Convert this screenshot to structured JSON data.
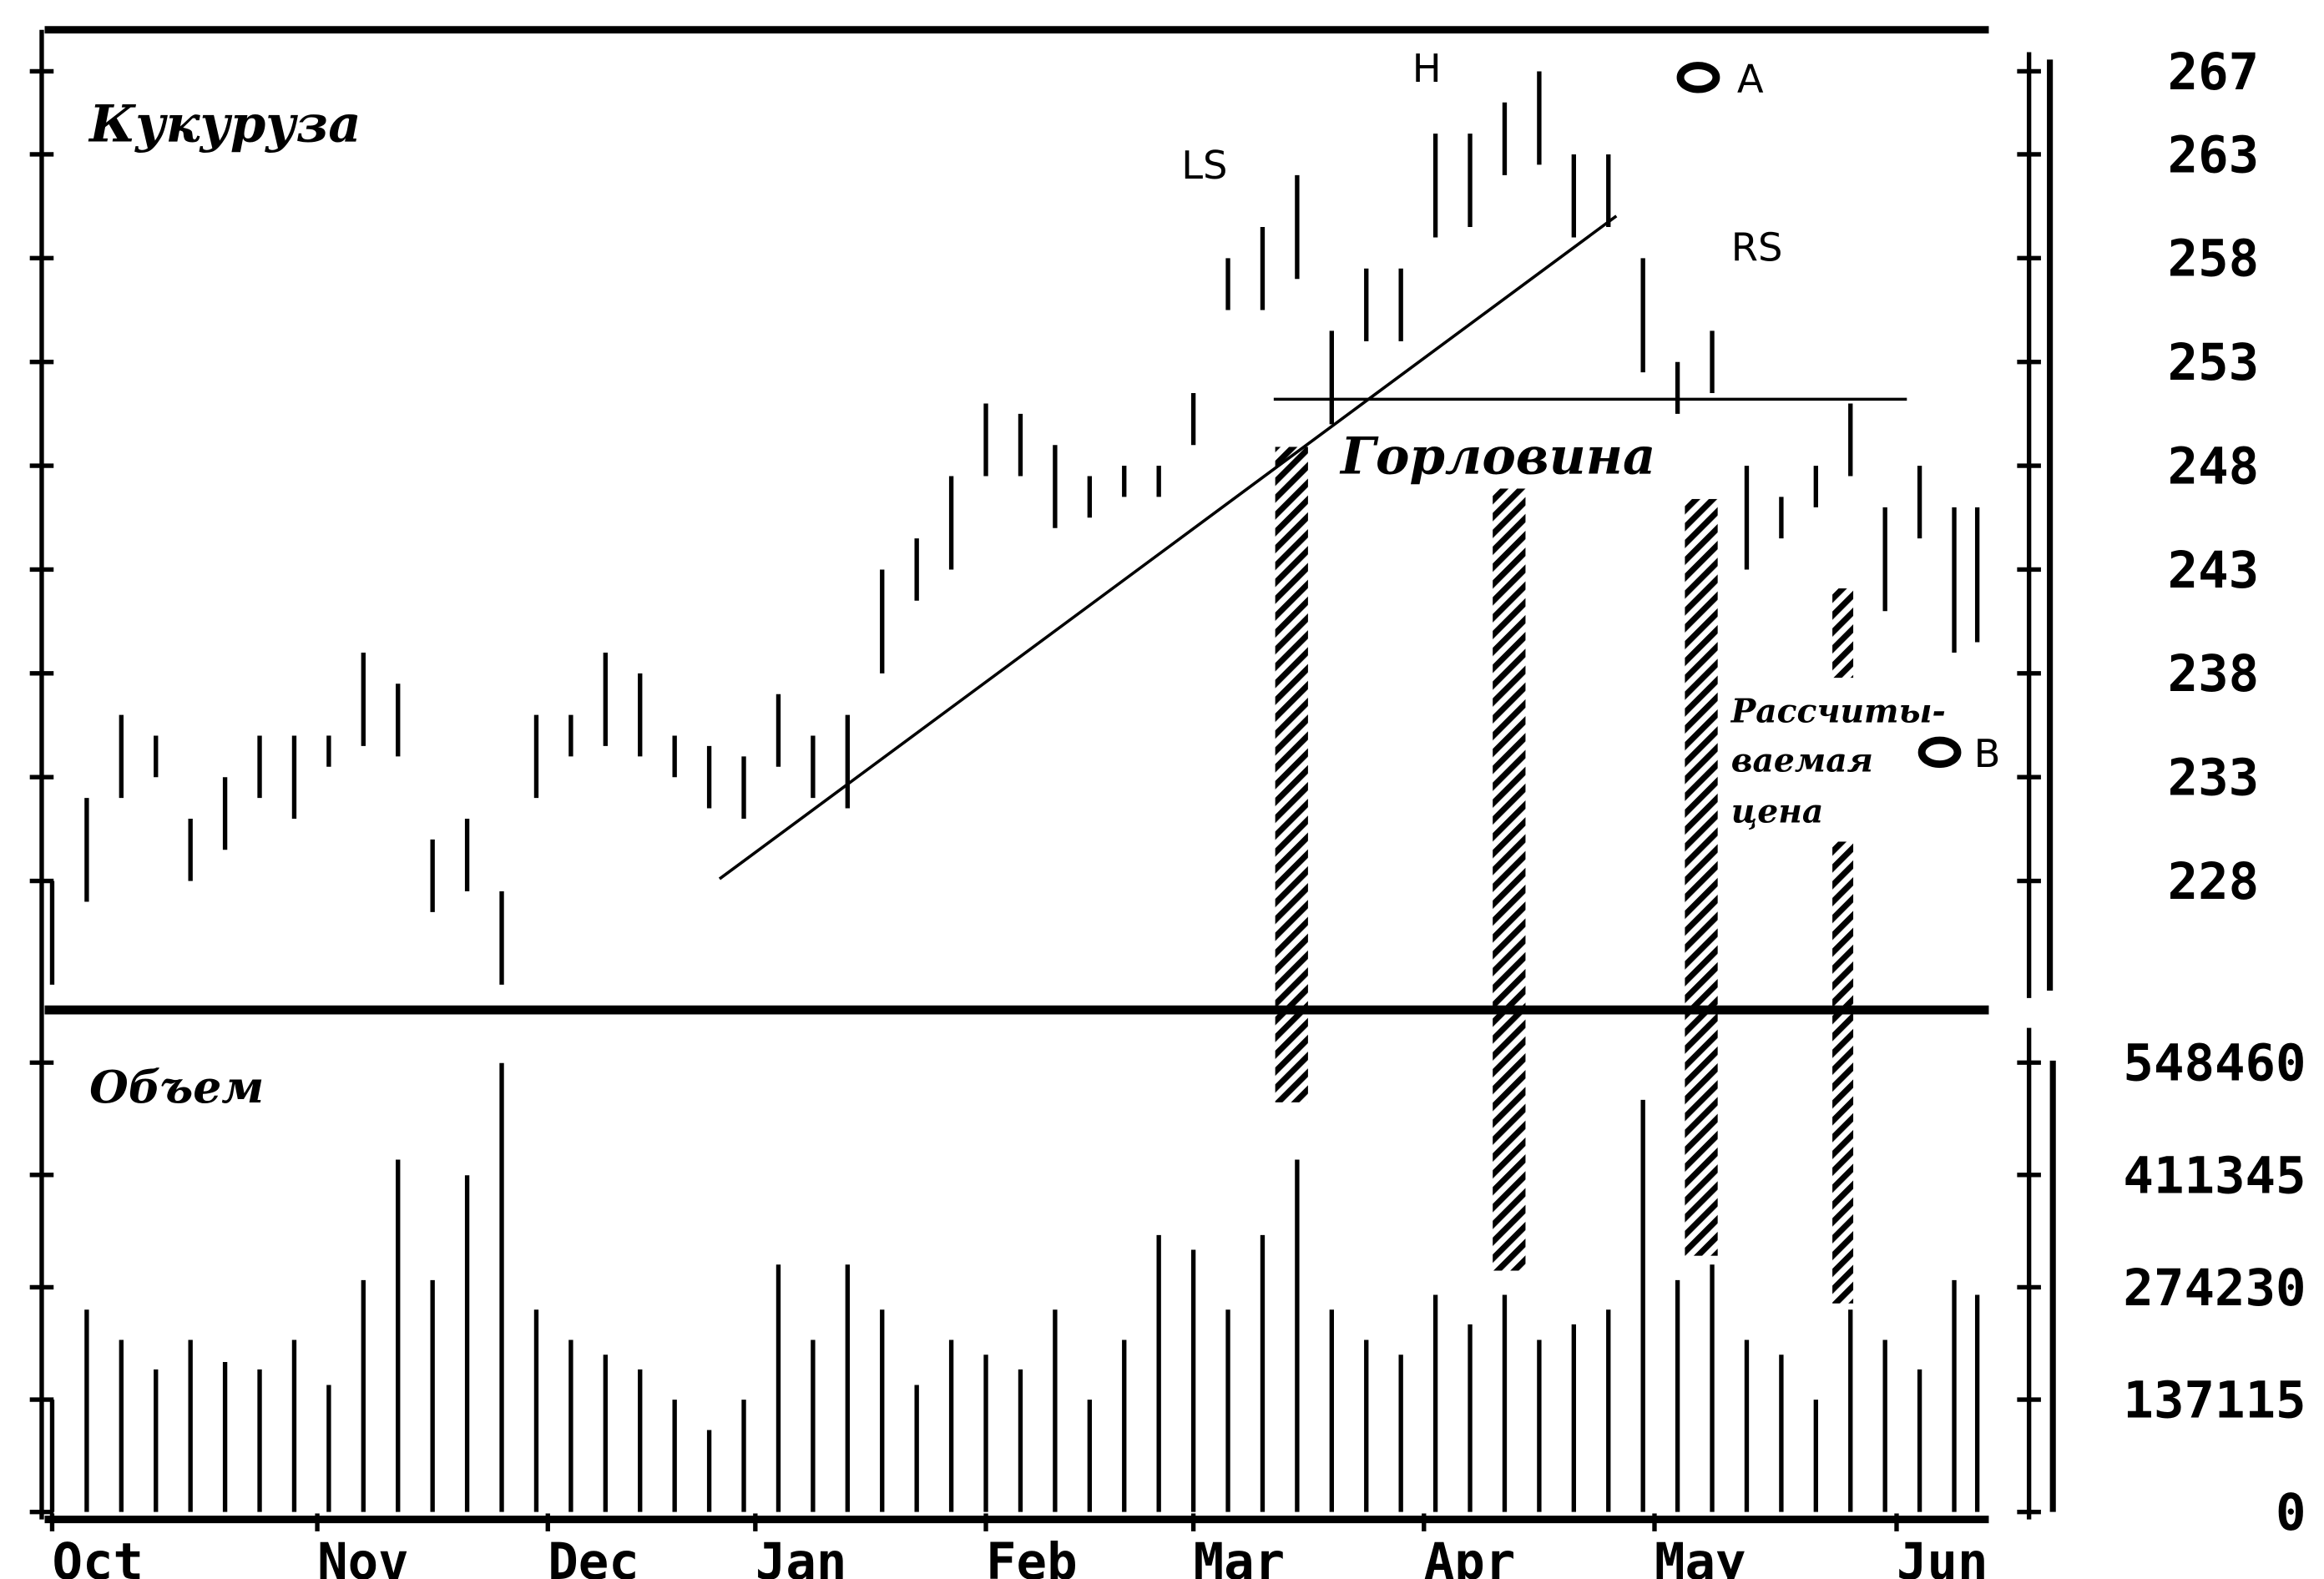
{
  "chart_data": {
    "type": "hl_bar",
    "title": "Кукуруза",
    "volume_title": "Объем",
    "x": [
      0,
      3,
      6,
      9,
      12,
      15,
      18,
      21,
      24,
      27,
      30,
      33,
      36,
      39,
      42,
      45,
      48,
      51,
      54,
      57,
      60,
      63,
      66,
      69,
      72,
      75,
      78,
      81,
      84,
      87,
      90,
      93,
      96,
      99,
      102,
      105,
      108,
      111,
      114,
      117,
      120,
      123,
      126,
      129,
      132,
      135,
      138,
      141,
      144,
      147,
      150,
      153,
      156,
      159,
      162,
      165,
      167
    ],
    "high": [
      228,
      232,
      236,
      235,
      231,
      233,
      235,
      235,
      235,
      239,
      237.5,
      230,
      231,
      227.5,
      236,
      236,
      239,
      238,
      235,
      234.5,
      234,
      237,
      235,
      236,
      243,
      244.5,
      247.5,
      251,
      250.5,
      249,
      247.5,
      248,
      248,
      251.5,
      258,
      259.5,
      262,
      254.5,
      257.5,
      257.5,
      264,
      264,
      265.5,
      267,
      263,
      263,
      258,
      253,
      254.5,
      248,
      246.5,
      248,
      251,
      246,
      248,
      246,
      246
    ],
    "low": [
      223,
      227,
      232,
      233,
      228,
      229.5,
      232,
      231,
      233.5,
      234.5,
      234,
      226.5,
      227.5,
      223,
      232,
      234,
      234.5,
      234,
      233,
      231.5,
      231,
      233.5,
      232,
      231.5,
      238,
      241.5,
      243,
      247.5,
      247.5,
      245,
      245.5,
      246.5,
      246.5,
      249,
      255.5,
      255.5,
      257,
      250,
      254,
      254,
      259,
      259.5,
      262,
      262.5,
      259,
      259.5,
      252.5,
      250.5,
      251.5,
      243,
      244.5,
      246,
      247.5,
      241,
      244.5,
      239,
      239.5
    ],
    "volume": [
      137000,
      247000,
      210000,
      174000,
      210000,
      183000,
      174000,
      210000,
      155000,
      283000,
      430000,
      283000,
      411000,
      548000,
      247000,
      210000,
      192000,
      174000,
      137000,
      100000,
      137000,
      302000,
      210000,
      302000,
      247000,
      155000,
      210000,
      192000,
      174000,
      247000,
      137000,
      210000,
      338000,
      320000,
      247000,
      338000,
      430000,
      247000,
      210000,
      192000,
      265000,
      229000,
      265000,
      210000,
      229000,
      247000,
      503000,
      283000,
      302000,
      210000,
      192000,
      137000,
      247000,
      210000,
      174000,
      283000,
      265000
    ],
    "color": "#000000",
    "xlim": [
      0,
      168
    ],
    "xticks": [
      {
        "value": 0,
        "label": "Oct"
      },
      {
        "value": 23,
        "label": "Nov"
      },
      {
        "value": 43,
        "label": "Dec"
      },
      {
        "value": 61,
        "label": "Jan"
      },
      {
        "value": 81,
        "label": "Feb"
      },
      {
        "value": 99,
        "label": "Mar"
      },
      {
        "value": 119,
        "label": "Apr"
      },
      {
        "value": 139,
        "label": "May"
      },
      {
        "value": 160,
        "label": "Jun"
      }
    ],
    "ylim": [
      222,
      269
    ],
    "yticks": [
      267,
      263,
      258,
      253,
      248,
      243,
      238,
      233,
      228
    ],
    "volume_lim": [
      0,
      600000
    ],
    "volume_ticks": [
      548460,
      411345,
      274230,
      137115,
      0
    ],
    "annotations": [
      "LS",
      "H",
      "RS",
      "A",
      "B",
      "Горловина",
      "Рассчиты-",
      "ваемая",
      "цена"
    ]
  }
}
